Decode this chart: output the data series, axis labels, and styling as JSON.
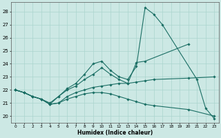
{
  "xlabel": "Humidex (Indice chaleur)",
  "background_color": "#cce8e4",
  "grid_color": "#aad4ce",
  "line_color": "#1a6e64",
  "xlim": [
    -0.5,
    23.5
  ],
  "ylim": [
    19.5,
    28.7
  ],
  "yticks": [
    20,
    21,
    22,
    23,
    24,
    25,
    26,
    27,
    28
  ],
  "xticks": [
    0,
    1,
    2,
    3,
    4,
    5,
    6,
    7,
    8,
    9,
    10,
    11,
    12,
    13,
    14,
    15,
    16,
    17,
    18,
    19,
    20,
    21,
    22,
    23
  ],
  "line1_x": [
    0,
    1,
    2,
    3,
    4,
    5,
    6,
    7,
    8,
    9,
    10,
    11,
    12,
    13,
    14,
    15,
    16,
    17,
    21,
    22,
    23
  ],
  "line1_y": [
    22.0,
    21.8,
    21.5,
    21.3,
    20.9,
    21.5,
    22.1,
    22.5,
    23.2,
    24.0,
    24.2,
    23.5,
    23.0,
    22.8,
    23.8,
    28.3,
    27.8,
    27.0,
    22.8,
    20.6,
    19.8
  ],
  "line2_x": [
    0,
    1,
    2,
    3,
    4,
    5,
    6,
    7,
    8,
    9,
    10,
    11,
    12,
    13,
    14,
    15,
    20
  ],
  "line2_y": [
    22.0,
    21.8,
    21.5,
    21.3,
    21.0,
    21.5,
    22.0,
    22.3,
    22.8,
    23.2,
    23.7,
    23.2,
    22.8,
    22.5,
    24.1,
    24.2,
    25.5
  ],
  "line3_x": [
    0,
    1,
    2,
    3,
    4,
    5,
    6,
    7,
    8,
    9,
    10,
    11,
    12,
    13,
    14,
    15,
    16,
    20,
    23
  ],
  "line3_y": [
    22.0,
    21.8,
    21.5,
    21.3,
    20.9,
    21.0,
    21.5,
    21.8,
    22.0,
    22.2,
    22.3,
    22.4,
    22.5,
    22.5,
    22.6,
    22.7,
    22.8,
    22.9,
    23.0
  ],
  "line4_x": [
    0,
    1,
    2,
    3,
    4,
    5,
    6,
    7,
    8,
    9,
    10,
    11,
    12,
    13,
    14,
    15,
    16,
    20,
    23
  ],
  "line4_y": [
    22.0,
    21.8,
    21.5,
    21.3,
    20.9,
    21.0,
    21.3,
    21.5,
    21.7,
    21.8,
    21.8,
    21.7,
    21.5,
    21.3,
    21.1,
    20.9,
    20.8,
    20.5,
    20.0
  ]
}
